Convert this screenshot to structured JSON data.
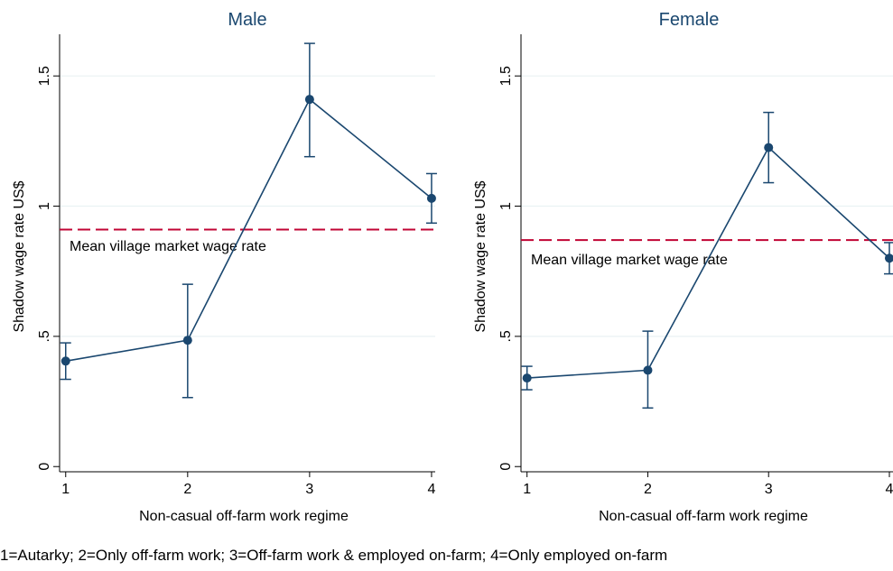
{
  "chart_data": [
    {
      "type": "line",
      "title": "Male",
      "xlabel": "Non-casual off-farm work regime",
      "ylabel": "Shadow wage rate US$",
      "x": [
        1,
        2,
        3,
        4
      ],
      "xticks": [
        "1",
        "2",
        "3",
        "4"
      ],
      "yticks": [
        "0",
        ".5",
        "1",
        "1.5"
      ],
      "ylim": [
        -0.02,
        1.66
      ],
      "xlim": [
        0.95,
        4.03
      ],
      "grid": true,
      "series": [
        {
          "values": [
            0.405,
            0.485,
            1.41,
            1.03
          ],
          "ci_low": [
            0.335,
            0.265,
            1.19,
            0.935
          ],
          "ci_high": [
            0.475,
            0.7,
            1.625,
            1.125
          ]
        }
      ],
      "reference_line": {
        "value": 0.91,
        "label": "Mean village market wage rate"
      }
    },
    {
      "type": "line",
      "title": "Female",
      "xlabel": "Non-casual off-farm work regime",
      "ylabel": "Shadow wage rate US$",
      "x": [
        1,
        2,
        3,
        4
      ],
      "xticks": [
        "1",
        "2",
        "3",
        "4"
      ],
      "yticks": [
        "0",
        ".5",
        "1",
        "1.5"
      ],
      "ylim": [
        -0.02,
        1.66
      ],
      "xlim": [
        0.95,
        4.03
      ],
      "grid": true,
      "series": [
        {
          "values": [
            0.34,
            0.37,
            1.225,
            0.8
          ],
          "ci_low": [
            0.295,
            0.225,
            1.09,
            0.74
          ],
          "ci_high": [
            0.385,
            0.52,
            1.36,
            0.86
          ]
        }
      ],
      "reference_line": {
        "value": 0.87,
        "label": "Mean village market wage rate"
      }
    }
  ],
  "note": "1=Autarky; 2=Only off-farm work; 3=Off-farm work & employed on-farm; 4=Only employed on-farm",
  "colors": {
    "series": "#1a476f",
    "reference": "#c10534",
    "grid": "#eaf2f3",
    "axis": "#000000"
  }
}
